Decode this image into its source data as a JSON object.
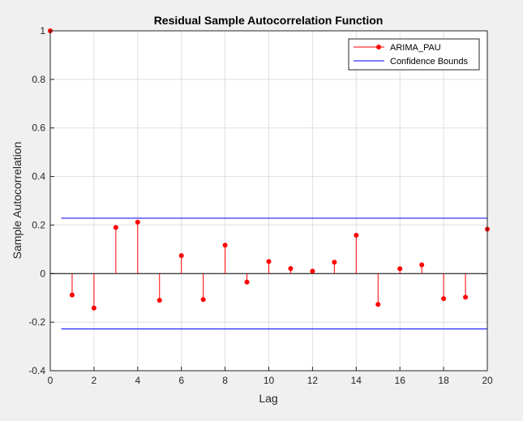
{
  "chart_data": {
    "type": "stem",
    "title": "Residual Sample Autocorrelation Function",
    "xlabel": "Lag",
    "ylabel": "Sample Autocorrelation",
    "xlim": [
      0,
      20
    ],
    "ylim": [
      -0.4,
      1
    ],
    "xticks": [
      "0",
      "2",
      "4",
      "6",
      "8",
      "10",
      "12",
      "14",
      "16",
      "18",
      "20"
    ],
    "yticks": [
      "-0.4",
      "-0.2",
      "0",
      "0.2",
      "0.4",
      "0.6",
      "0.8",
      "1"
    ],
    "grid": true,
    "legend_position": "top-right",
    "series": [
      {
        "name": "ARIMA_PAU",
        "color": "#ff0000",
        "x": [
          0,
          1,
          2,
          3,
          4,
          5,
          6,
          7,
          8,
          9,
          10,
          11,
          12,
          13,
          14,
          15,
          16,
          17,
          18,
          19,
          20
        ],
        "values": [
          1.0,
          -0.088,
          -0.142,
          0.19,
          0.212,
          -0.11,
          0.074,
          -0.107,
          0.117,
          -0.035,
          0.05,
          0.021,
          0.01,
          0.047,
          0.158,
          -0.127,
          0.02,
          0.036,
          -0.103,
          -0.097,
          0.183
        ]
      }
    ],
    "confidence_bounds": {
      "name": "Confidence Bounds",
      "color": "#0000ff",
      "upper": 0.228,
      "lower": -0.228,
      "x_range": [
        0.5,
        20
      ]
    }
  }
}
